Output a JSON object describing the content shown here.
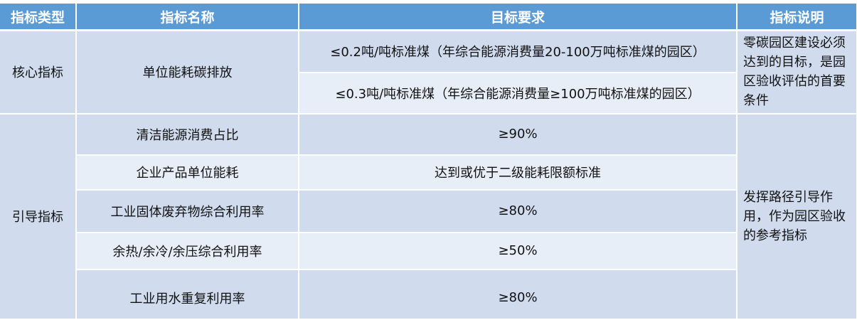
{
  "headers": [
    "指标类型",
    "指标名称",
    "目标要求",
    "指标说明"
  ],
  "core": {
    "type": "核心指标",
    "name": "单位能耗碳排放",
    "requirements": [
      "≤0.2吨/吨标准煤（年综合能源消费量20-100万吨标准煤的园区）",
      "≤0.3吨/吨标准煤（年综合能源消费量≥100万吨标准煤的园区）"
    ],
    "note": "零碳园区建设必须达到的目标，是园区验收评估的首要条件"
  },
  "guide": {
    "type": "引导指标",
    "rows": [
      {
        "name": "清洁能源消费占比",
        "req": "≥90%"
      },
      {
        "name": "企业产品单位能耗",
        "req": "达到或优于二级能耗限额标准"
      },
      {
        "name": "工业固体废弃物综合利用率",
        "req": "≥80%"
      },
      {
        "name": "余热/余冷/余压综合利用率",
        "req": "≥50%"
      },
      {
        "name": "工业用水重复利用率",
        "req": "≥80%"
      }
    ],
    "note": "发挥路径引导作用，作为园区验收的参考指标"
  }
}
